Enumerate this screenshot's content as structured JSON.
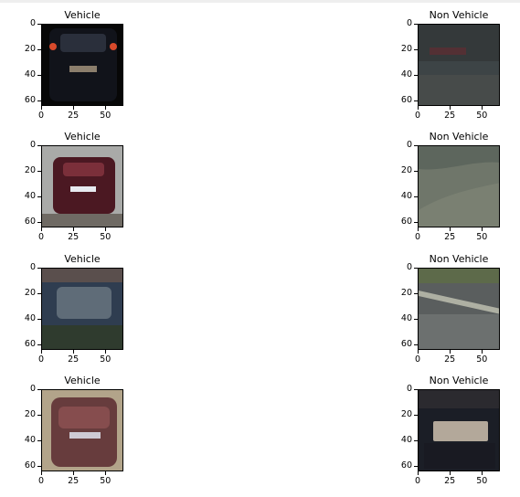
{
  "chart_data": [
    {
      "type": "image",
      "title": "Vehicle",
      "xticks": [
        "0",
        "25",
        "50"
      ],
      "yticks": [
        "0",
        "20",
        "40",
        "60"
      ],
      "colors": [
        "#070707",
        "#11131a",
        "#2a2f3b",
        "#8b7e6c"
      ]
    },
    {
      "type": "image",
      "title": "Non Vehicle",
      "xticks": [
        "0",
        "25",
        "50"
      ],
      "yticks": [
        "0",
        "20",
        "40",
        "60"
      ],
      "colors": [
        "#34393a",
        "#3d4446",
        "#474b4a",
        "#5b2e33"
      ]
    },
    {
      "type": "image",
      "title": "Vehicle",
      "xticks": [
        "0",
        "25",
        "50"
      ],
      "yticks": [
        "0",
        "20",
        "40",
        "60"
      ],
      "colors": [
        "#a9aaa8",
        "#4b1822",
        "#7b2f3a",
        "#6f6a64"
      ]
    },
    {
      "type": "image",
      "title": "Non Vehicle",
      "xticks": [
        "0",
        "25",
        "50"
      ],
      "yticks": [
        "0",
        "20",
        "40",
        "60"
      ],
      "colors": [
        "#6f766a",
        "#7a8072",
        "#5d665d",
        "#5f665e"
      ]
    },
    {
      "type": "image",
      "title": "Vehicle",
      "xticks": [
        "0",
        "25",
        "50"
      ],
      "yticks": [
        "0",
        "20",
        "40",
        "60"
      ],
      "colors": [
        "#5a4f4d",
        "#2f3d50",
        "#5f6c78",
        "#2f3b2e"
      ]
    },
    {
      "type": "image",
      "title": "Non Vehicle",
      "xticks": [
        "0",
        "25",
        "50"
      ],
      "yticks": [
        "0",
        "20",
        "40",
        "60"
      ],
      "colors": [
        "#5d6a4a",
        "#5a5e5e",
        "#6c706f",
        "#aeb0a3"
      ]
    },
    {
      "type": "image",
      "title": "Vehicle",
      "xticks": [
        "0",
        "25",
        "50"
      ],
      "yticks": [
        "0",
        "20",
        "40",
        "60"
      ],
      "colors": [
        "#b5a98e",
        "#5a2a30",
        "#7f3f45",
        "#a98f78"
      ]
    },
    {
      "type": "image",
      "title": "Non Vehicle",
      "xticks": [
        "0",
        "25",
        "50"
      ],
      "yticks": [
        "0",
        "20",
        "40",
        "60"
      ],
      "colors": [
        "#1b1e26",
        "#2b2a2f",
        "#b3a89a",
        "#191a22"
      ]
    }
  ]
}
